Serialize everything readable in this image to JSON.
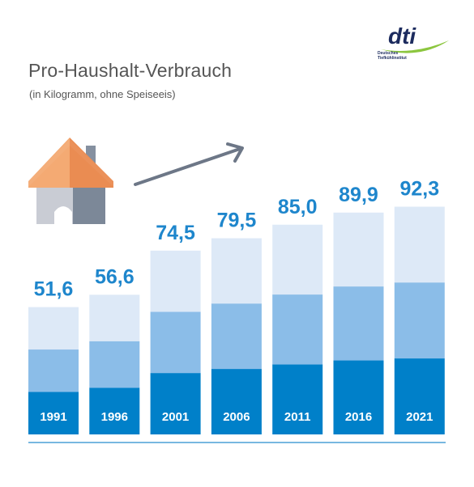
{
  "title": "Pro-Haushalt-Verbrauch",
  "subtitle": "(in Kilogramm, ohne Speiseeis)",
  "logo": {
    "mark": "dti",
    "line1": "Deutsches",
    "line2": "Tiefkühlinstitut"
  },
  "colors": {
    "dark": "#0080c9",
    "mid": "#8bbde8",
    "light": "#dde9f7",
    "label": "#1e86cc",
    "axis": "#4aa0d6"
  },
  "chart_data": {
    "type": "bar",
    "categories": [
      "1991",
      "1996",
      "2001",
      "2006",
      "2011",
      "2016",
      "2021"
    ],
    "values": [
      51.6,
      56.6,
      74.5,
      79.5,
      85.0,
      89.9,
      92.3
    ],
    "value_labels": [
      "51,6",
      "56,6",
      "74,5",
      "79,5",
      "85,0",
      "89,9",
      "92,3"
    ],
    "ylim": [
      0,
      100
    ]
  }
}
